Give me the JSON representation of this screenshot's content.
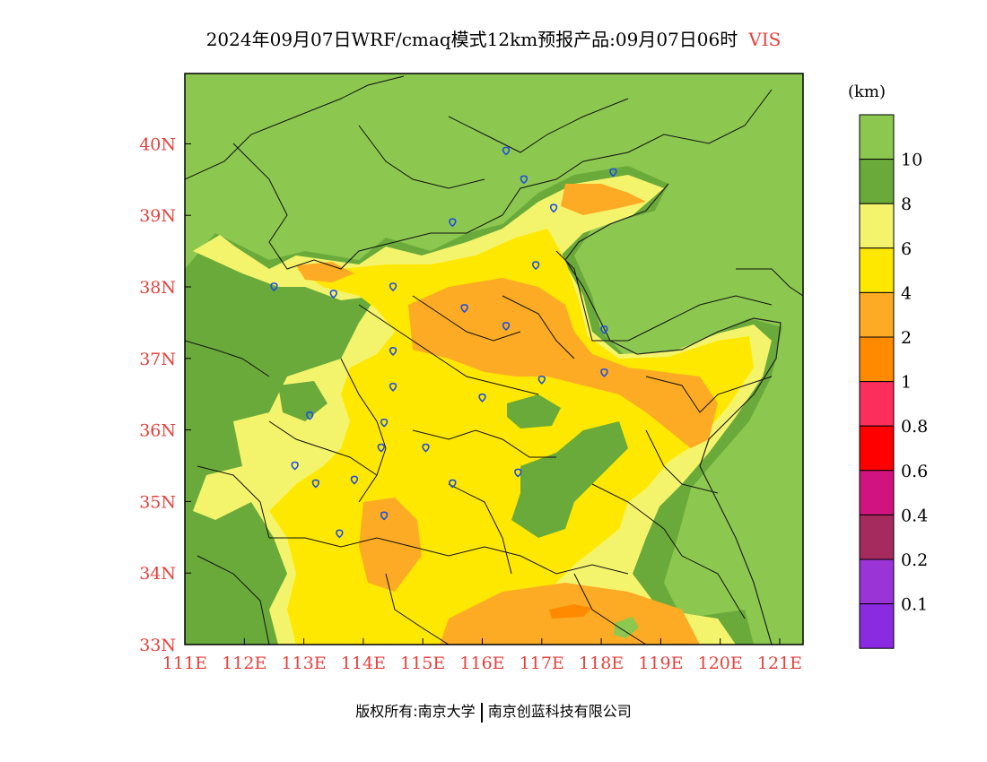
{
  "title": {
    "main": "2024年09月07日WRF/cmaq模式12km预报产品:09月07日06时",
    "variable": "VIS"
  },
  "footer": {
    "left": "版权所有:南京大学",
    "right": "南京创蓝科技有限公司"
  },
  "colors": {
    "axis_labels": "#e8403c",
    "background": "#8cc850"
  },
  "map": {
    "lon_labels": [
      "111E",
      "112E",
      "113E",
      "114E",
      "115E",
      "116E",
      "117E",
      "118E",
      "119E",
      "120E",
      "121E"
    ],
    "lat_labels": [
      "33N",
      "34N",
      "35N",
      "36N",
      "37N",
      "38N",
      "39N",
      "40N"
    ]
  },
  "legend": {
    "unit": "(km)",
    "bins": [
      {
        "label": "10",
        "color": "#8cc850"
      },
      {
        "label": "8",
        "color": "#6aaa3a"
      },
      {
        "label": "6",
        "color": "#f4f46c"
      },
      {
        "label": "4",
        "color": "#ffe800"
      },
      {
        "label": "2",
        "color": "#fdab25"
      },
      {
        "label": "1",
        "color": "#ff8a00"
      },
      {
        "label": "0.8",
        "color": "#fb2e5c"
      },
      {
        "label": "0.6",
        "color": "#ff0000"
      },
      {
        "label": "0.4",
        "color": "#d0137e"
      },
      {
        "label": "0.2",
        "color": "#a52a5e"
      },
      {
        "label": "0.1",
        "color": "#9a34d6"
      },
      {
        "label": "",
        "color": "#8a2be2"
      }
    ]
  },
  "cities": [
    [
      116.4,
      39.9
    ],
    [
      116.7,
      39.5
    ],
    [
      118.2,
      39.6
    ],
    [
      117.2,
      39.1
    ],
    [
      115.5,
      38.9
    ],
    [
      116.9,
      38.3
    ],
    [
      112.5,
      38.0
    ],
    [
      113.5,
      37.9
    ],
    [
      114.5,
      38.0
    ],
    [
      115.7,
      37.7
    ],
    [
      116.4,
      37.45
    ],
    [
      118.05,
      37.4
    ],
    [
      114.5,
      37.1
    ],
    [
      118.05,
      36.8
    ],
    [
      117.0,
      36.7
    ],
    [
      114.5,
      36.6
    ],
    [
      116.0,
      36.45
    ],
    [
      113.1,
      36.2
    ],
    [
      114.35,
      36.1
    ],
    [
      115.05,
      35.75
    ],
    [
      114.3,
      35.75
    ],
    [
      112.85,
      35.5
    ],
    [
      116.6,
      35.4
    ],
    [
      113.85,
      35.3
    ],
    [
      113.2,
      35.25
    ],
    [
      115.5,
      35.25
    ],
    [
      114.35,
      34.8
    ],
    [
      113.6,
      34.55
    ]
  ]
}
